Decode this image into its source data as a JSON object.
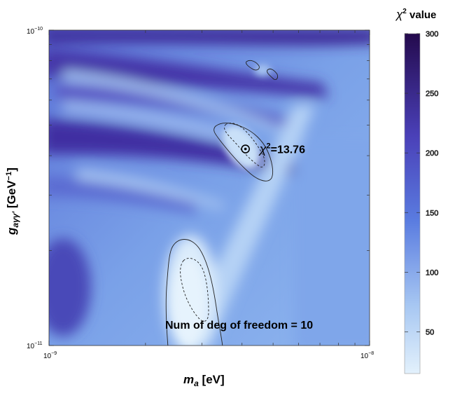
{
  "chart_data": {
    "type": "heatmap",
    "title": "",
    "xlabel_main": "m",
    "xlabel_sub": "a",
    "xlabel_unit": " [eV]",
    "ylabel_main": "g",
    "ylabel_sub": "aγγ'",
    "ylabel_unit": " [GeV",
    "ylabel_exp": "−1",
    "ylabel_close": "]",
    "x_scale": "log",
    "y_scale": "log",
    "xlim": [
      1e-09,
      1e-08
    ],
    "ylim": [
      1e-11,
      1e-10
    ],
    "x_ticks": [
      {
        "base": "10",
        "exp": "−9",
        "value": 1e-09
      },
      {
        "base": "10",
        "exp": "−8",
        "value": 1e-08
      }
    ],
    "y_ticks": [
      {
        "base": "10",
        "exp": "−11",
        "value": 1e-11
      },
      {
        "base": "10",
        "exp": "−10",
        "value": 1e-10
      }
    ],
    "colorbar": {
      "title_symbol": "χ",
      "title_exp": "2",
      "title_text": " value",
      "range": [
        15,
        300
      ],
      "ticks": [
        "50",
        "100",
        "150",
        "200",
        "250",
        "300"
      ],
      "tick_values": [
        50,
        100,
        150,
        200,
        250,
        300
      ],
      "color_low": "#d9ebfb",
      "color_mid": "#5a7ce0",
      "color_high": "#240a4d"
    },
    "best_fit": {
      "m_a": 4.1e-09,
      "g": 4.2e-11,
      "label_symbol": "χ",
      "label_exp": "2",
      "label_value": "=13.76"
    },
    "dof_annotation": "Num of deg of freedom = 10"
  }
}
